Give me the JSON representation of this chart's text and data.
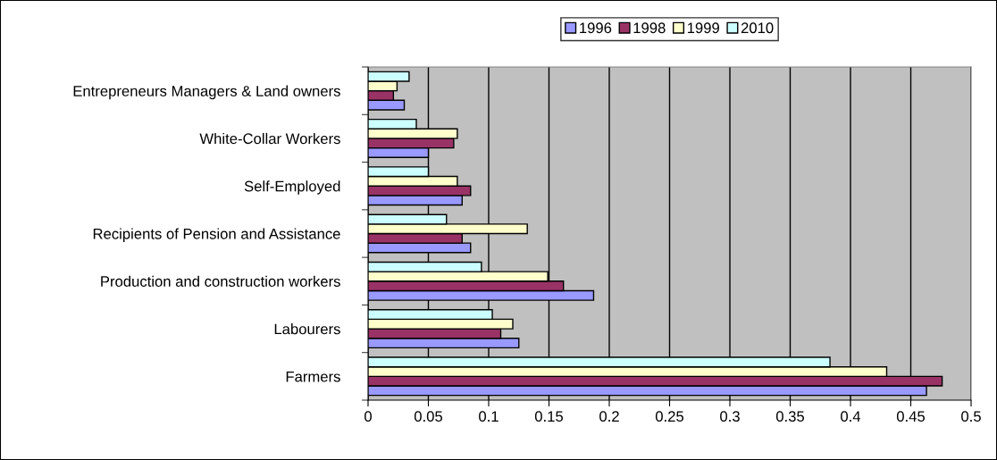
{
  "chart_data": {
    "type": "bar",
    "orientation": "horizontal",
    "categories": [
      "Entrepreneurs Managers & Land owners",
      "White-Collar Workers",
      "Self-Employed",
      "Recipients of Pension and Assistance",
      "Production and construction workers",
      "Labourers",
      "Farmers"
    ],
    "series": [
      {
        "name": "1996",
        "color": "#9999ff",
        "values": [
          0.03,
          0.05,
          0.078,
          0.085,
          0.187,
          0.125,
          0.463
        ]
      },
      {
        "name": "1998",
        "color": "#993366",
        "values": [
          0.021,
          0.071,
          0.085,
          0.078,
          0.162,
          0.11,
          0.476
        ]
      },
      {
        "name": "1999",
        "color": "#ffffcc",
        "values": [
          0.024,
          0.074,
          0.074,
          0.132,
          0.149,
          0.12,
          0.43
        ]
      },
      {
        "name": "2010",
        "color": "#ccffff",
        "values": [
          0.034,
          0.04,
          0.05,
          0.065,
          0.094,
          0.103,
          0.383
        ]
      }
    ],
    "xlim": [
      0,
      0.5
    ],
    "xticks": [
      0,
      0.05,
      0.1,
      0.15,
      0.2,
      0.25,
      0.3,
      0.35,
      0.4,
      0.45,
      0.5
    ],
    "grid": "x",
    "legend": "top"
  }
}
